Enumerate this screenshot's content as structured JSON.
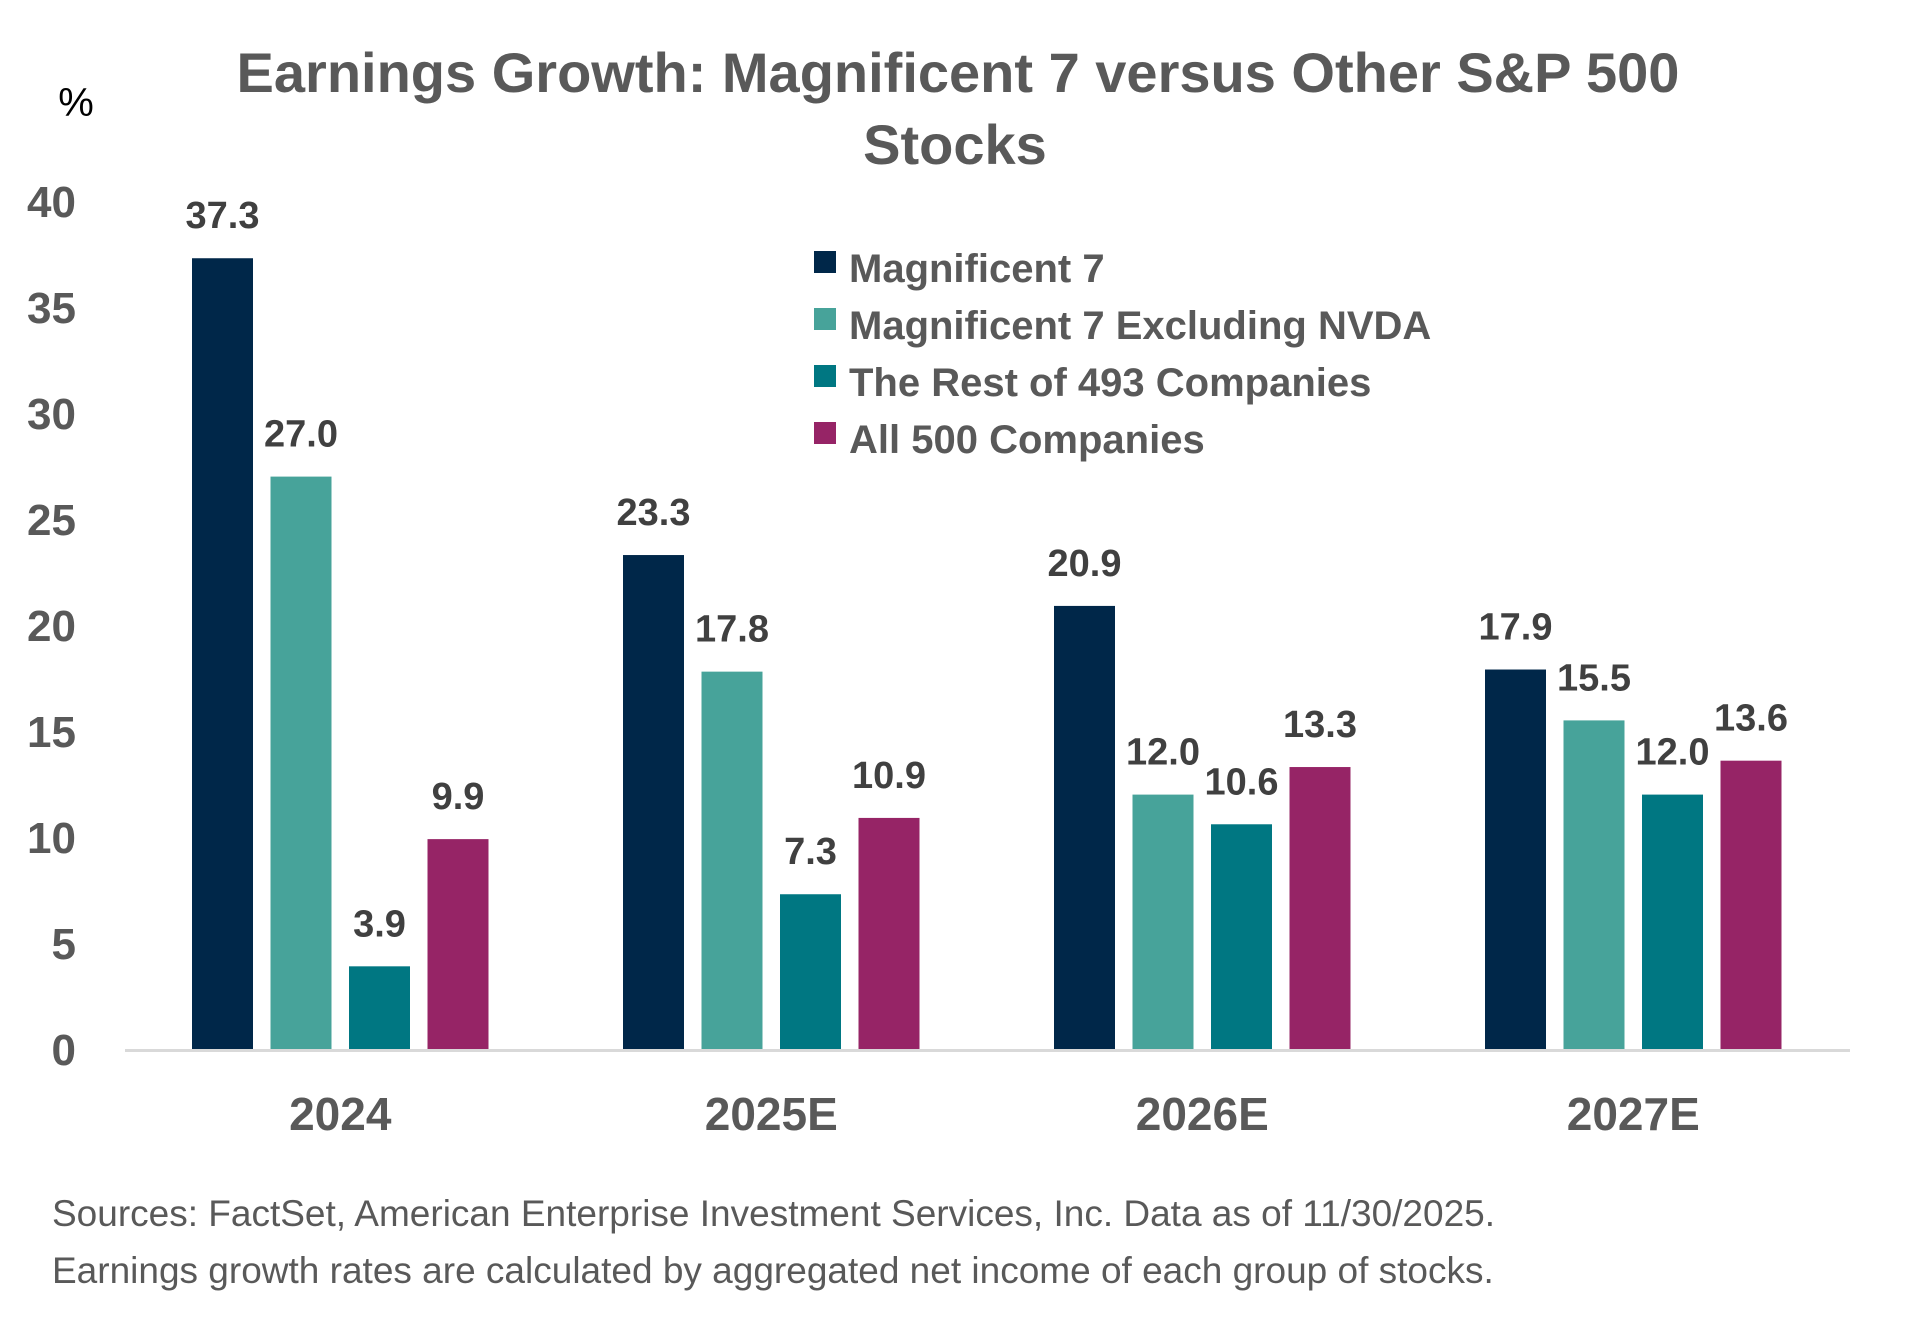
{
  "chart_data": {
    "type": "bar",
    "title": "Earnings Growth: Magnificent 7 versus Other S&P 500 Stocks",
    "title_lines": [
      "Earnings Growth: Magnificent 7 versus Other S&P 500",
      "Stocks"
    ],
    "ylabel": "%",
    "xlabel": "",
    "ylim": [
      0,
      40
    ],
    "yticks": [
      0,
      5,
      10,
      15,
      20,
      25,
      30,
      35,
      40
    ],
    "grid": false,
    "legend_position": "top-center",
    "categories": [
      "2024",
      "2025E",
      "2026E",
      "2027E"
    ],
    "series": [
      {
        "name": "Magnificent 7",
        "color": "#002749",
        "values": [
          37.3,
          23.3,
          20.9,
          17.9
        ],
        "labels": [
          "37.3",
          "23.3",
          "20.9",
          "17.9"
        ]
      },
      {
        "name": "Magnificent 7 Excluding NVDA",
        "color": "#47A39A",
        "values": [
          27.0,
          17.8,
          12.0,
          15.5
        ],
        "labels": [
          "27.0",
          "17.8",
          "12.0",
          "15.5"
        ]
      },
      {
        "name": "The Rest of 493 Companies",
        "color": "#007782",
        "values": [
          3.9,
          7.3,
          10.6,
          12.0
        ],
        "labels": [
          "3.9",
          "7.3",
          "10.6",
          "12.0"
        ]
      },
      {
        "name": "All 500 Companies",
        "color": "#962466",
        "values": [
          9.9,
          10.9,
          13.3,
          13.6
        ],
        "labels": [
          "9.9",
          "10.9",
          "13.3",
          "13.6"
        ]
      }
    ]
  },
  "footnote": {
    "line1": "Sources: FactSet, American Enterprise Investment Services, Inc. Data as of 11/30/2025.",
    "line2": "Earnings growth rates are calculated by aggregated net income of each group of stocks."
  }
}
